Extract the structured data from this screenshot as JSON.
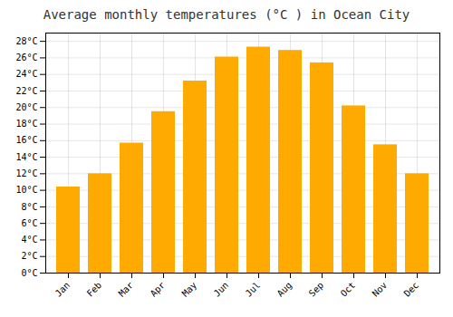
{
  "chart_data": {
    "type": "bar",
    "title": "Average monthly temperatures (°C ) in Ocean City",
    "categories": [
      "Jan",
      "Feb",
      "Mar",
      "Apr",
      "May",
      "Jun",
      "Jul",
      "Aug",
      "Sep",
      "Oct",
      "Nov",
      "Dec"
    ],
    "values": [
      10.4,
      12.0,
      15.7,
      19.5,
      23.2,
      26.1,
      27.3,
      26.9,
      25.4,
      20.2,
      15.5,
      12.0
    ],
    "color": "#FFAA00",
    "ylim": [
      0,
      29
    ],
    "yticks": [
      {
        "value": 0,
        "label": "0°C"
      },
      {
        "value": 2,
        "label": "2°C"
      },
      {
        "value": 4,
        "label": "4°C"
      },
      {
        "value": 6,
        "label": "6°C"
      },
      {
        "value": 8,
        "label": "8°C"
      },
      {
        "value": 10,
        "label": "10°C"
      },
      {
        "value": 12,
        "label": "12°C"
      },
      {
        "value": 14,
        "label": "14°C"
      },
      {
        "value": 16,
        "label": "16°C"
      },
      {
        "value": 18,
        "label": "18°C"
      },
      {
        "value": 20,
        "label": "20°C"
      },
      {
        "value": 22,
        "label": "22°C"
      },
      {
        "value": 24,
        "label": "24°C"
      },
      {
        "value": 26,
        "label": "26°C"
      },
      {
        "value": 28,
        "label": "28°C"
      }
    ],
    "grid": true
  }
}
